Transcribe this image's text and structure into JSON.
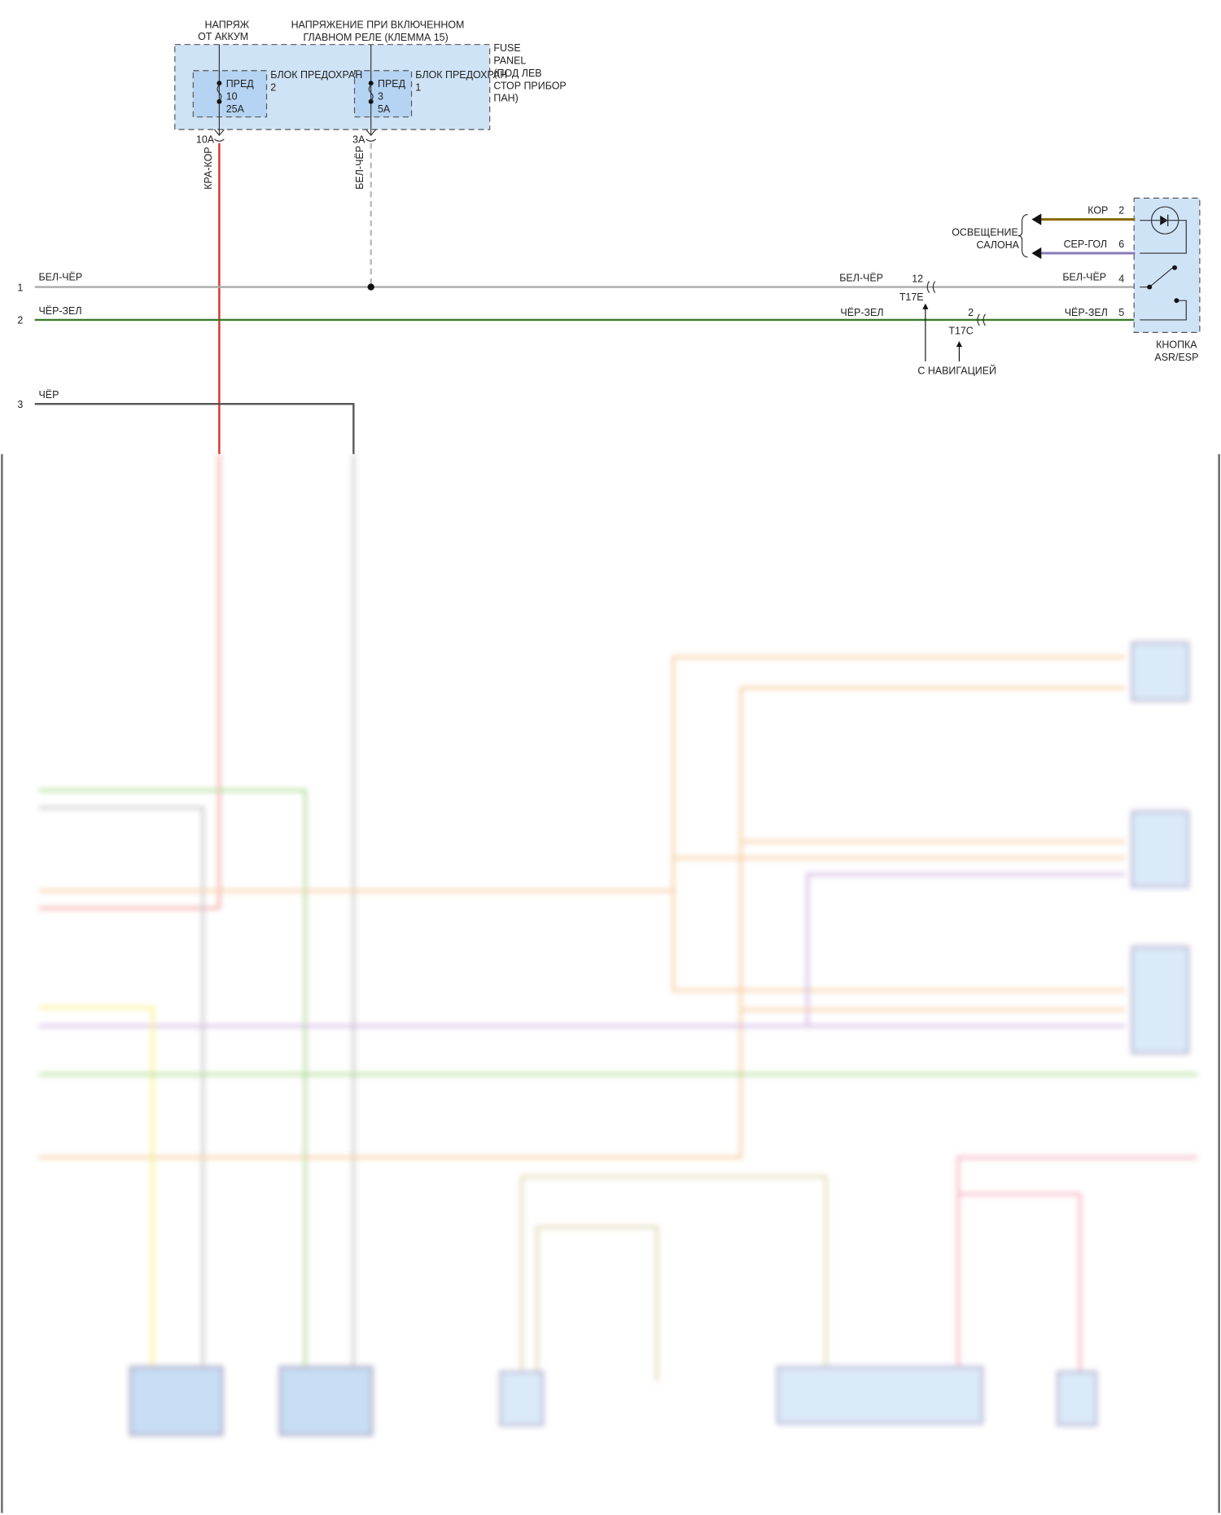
{
  "fuse_panel": {
    "supply_battery": [
      "НАПРЯЖ",
      "ОТ АККУМ"
    ],
    "supply_ignition": [
      "НАПРЯЖЕНИЕ ПРИ ВКЛЮЧЕННОМ",
      "ГЛАВНОМ РЕЛЕ (КЛЕММА 15)"
    ],
    "panel_label": [
      "FUSE",
      "PANEL",
      "(ПОД ЛЕВ",
      "СТОР ПРИБОР",
      "ПАН)"
    ],
    "block_2": {
      "label": "БЛОК ПРЕДОХРАН",
      "num": "2",
      "fuse": [
        "ПРЕД",
        "10",
        "25A"
      ],
      "pin": "10A",
      "wire": "КРА-КОР"
    },
    "block_1": {
      "label": "БЛОК ПРЕДОХРАН",
      "num": "1",
      "fuse": [
        "ПРЕД",
        "3",
        "5A"
      ],
      "pin": "3A",
      "wire": "БЕЛ-ЧЁР"
    }
  },
  "rows": [
    {
      "num": "1",
      "wire": "БЕЛ-ЧЁР"
    },
    {
      "num": "2",
      "wire": "ЧЁР-ЗЕЛ"
    },
    {
      "num": "3",
      "wire": "ЧЁР"
    }
  ],
  "connectors": {
    "t17e": {
      "pin": "12",
      "name": "T17E",
      "wire": "БЕЛ-ЧЁР"
    },
    "t17c": {
      "pin": "2",
      "name": "T17C",
      "wire": "ЧЁР-ЗЕЛ"
    },
    "nav_note": "С НАВИГАЦИЕЙ"
  },
  "switch": {
    "label": [
      "КНОПКА",
      "ASR/ESP"
    ],
    "interior_light": [
      "ОСВЕЩЕНИЕ",
      "САЛОНА"
    ],
    "pins": [
      {
        "pin": "2",
        "wire": "КОР"
      },
      {
        "pin": "6",
        "wire": "СЕР-ГОЛ"
      },
      {
        "pin": "4",
        "wire": "БЕЛ-ЧЁР"
      },
      {
        "pin": "5",
        "wire": "ЧЁР-ЗЕЛ"
      }
    ]
  },
  "colors": {
    "red": "#d9302a",
    "green": "#3a7a2a",
    "gray": "#aaaaaa",
    "brown": "#8a6a10",
    "violet": "#8a7ab8",
    "fuse_bg": "#cfe3f7",
    "fuse_inner": "#b5d3f2"
  }
}
